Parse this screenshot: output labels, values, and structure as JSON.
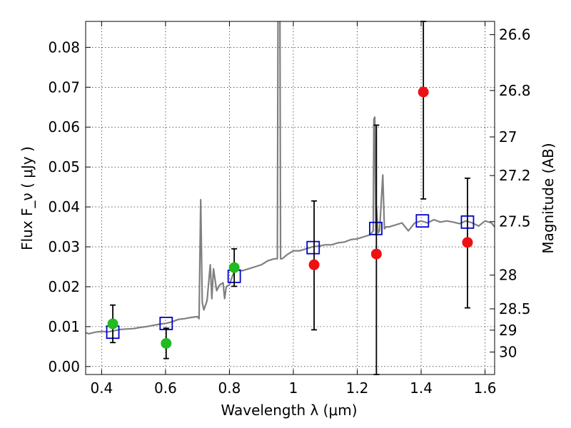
{
  "chart_data": {
    "type": "scatter",
    "xlabel": "Wavelength  λ (μm)",
    "ylabel": "Flux  F_ν  ( μJy )",
    "y2label": "Magnitude (AB)",
    "xlim": [
      0.35,
      1.63
    ],
    "ylim": [
      -0.002,
      0.0865
    ],
    "grid": true,
    "x_ticks": [
      0.4,
      0.6,
      0.8,
      1.0,
      1.2,
      1.4,
      1.6
    ],
    "x_tick_labels": [
      "0.4",
      "0.6",
      "0.8",
      "1",
      "1.2",
      "1.4",
      "1.6"
    ],
    "y_ticks": [
      0.0,
      0.01,
      0.02,
      0.03,
      0.04,
      0.05,
      0.06,
      0.07,
      0.08
    ],
    "y_tick_labels": [
      "0.00",
      "0.01",
      "0.02",
      "0.03",
      "0.04",
      "0.05",
      "0.06",
      "0.07",
      "0.08"
    ],
    "mag_ticks": [
      {
        "mag": 26.6,
        "label": "26.6"
      },
      {
        "mag": 26.8,
        "label": "26.8"
      },
      {
        "mag": 27.0,
        "label": "27"
      },
      {
        "mag": 27.2,
        "label": "27.2"
      },
      {
        "mag": 27.5,
        "label": "27.5"
      },
      {
        "mag": 28.0,
        "label": "28"
      },
      {
        "mag": 28.5,
        "label": "28.5"
      },
      {
        "mag": 29.0,
        "label": "29"
      },
      {
        "mag": 30.0,
        "label": "30"
      }
    ],
    "series": [
      {
        "type": "line",
        "color": "#808080",
        "x": [
          0.35,
          0.36,
          0.38,
          0.4,
          0.42,
          0.44,
          0.46,
          0.48,
          0.5,
          0.52,
          0.54,
          0.56,
          0.58,
          0.6,
          0.62,
          0.64,
          0.66,
          0.68,
          0.7,
          0.705,
          0.71,
          0.715,
          0.72,
          0.73,
          0.74,
          0.745,
          0.75,
          0.76,
          0.77,
          0.78,
          0.785,
          0.79,
          0.8,
          0.81,
          0.82,
          0.84,
          0.86,
          0.88,
          0.9,
          0.92,
          0.94,
          0.95,
          0.952,
          0.955,
          0.958,
          0.96,
          0.965,
          0.98,
          1.0,
          1.02,
          1.04,
          1.06,
          1.08,
          1.1,
          1.12,
          1.14,
          1.16,
          1.18,
          1.2,
          1.22,
          1.24,
          1.25,
          1.252,
          1.255,
          1.258,
          1.26,
          1.265,
          1.27,
          1.28,
          1.285,
          1.29,
          1.3,
          1.32,
          1.34,
          1.36,
          1.38,
          1.4,
          1.42,
          1.44,
          1.46,
          1.48,
          1.5,
          1.52,
          1.54,
          1.56,
          1.58,
          1.6,
          1.62,
          1.63
        ],
        "y": [
          0.0085,
          0.0082,
          0.0086,
          0.0088,
          0.0087,
          0.009,
          0.0093,
          0.0094,
          0.0095,
          0.0098,
          0.01,
          0.0103,
          0.0106,
          0.0108,
          0.0112,
          0.0118,
          0.012,
          0.0123,
          0.0125,
          0.012,
          0.0418,
          0.016,
          0.0142,
          0.0165,
          0.0255,
          0.017,
          0.0245,
          0.019,
          0.0205,
          0.021,
          0.017,
          0.02,
          0.0205,
          0.0228,
          0.0245,
          0.024,
          0.0245,
          0.025,
          0.0255,
          0.0265,
          0.027,
          0.027,
          0.089,
          0.089,
          0.089,
          0.027,
          0.027,
          0.028,
          0.029,
          0.029,
          0.0295,
          0.03,
          0.0302,
          0.0305,
          0.0305,
          0.031,
          0.0312,
          0.0318,
          0.032,
          0.0325,
          0.033,
          0.034,
          0.062,
          0.0625,
          0.033,
          0.04,
          0.0335,
          0.034,
          0.048,
          0.0345,
          0.035,
          0.035,
          0.0355,
          0.036,
          0.034,
          0.036,
          0.0365,
          0.036,
          0.0368,
          0.0362,
          0.0365,
          0.0362,
          0.0358,
          0.0365,
          0.036,
          0.0352,
          0.0365,
          0.036,
          0.035
        ]
      },
      {
        "type": "open-square",
        "color": "#0000cc",
        "x": [
          0.435,
          0.602,
          0.815,
          1.062,
          1.258,
          1.404,
          1.545
        ],
        "y": [
          0.0086,
          0.0108,
          0.0226,
          0.0298,
          0.0346,
          0.0365,
          0.0362
        ]
      },
      {
        "type": "errorbar-point",
        "color": "#22bb22",
        "x": [
          0.435,
          0.602,
          0.815
        ],
        "y": [
          0.0107,
          0.0058,
          0.0248
        ],
        "yerr": [
          0.0047,
          0.0038,
          0.0047
        ]
      },
      {
        "type": "errorbar-point",
        "color": "#ee1111",
        "x": [
          1.065,
          1.26,
          1.407,
          1.545
        ],
        "y": [
          0.0255,
          0.0282,
          0.0688,
          0.0311
        ],
        "ylow": [
          0.0092,
          -0.002,
          0.042,
          0.0147
        ],
        "yhigh": [
          0.0415,
          0.0605,
          0.0865,
          0.0472
        ]
      }
    ]
  }
}
